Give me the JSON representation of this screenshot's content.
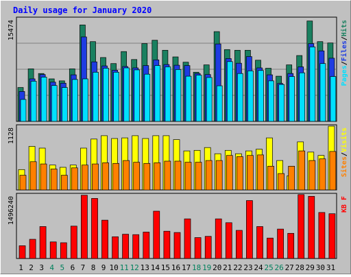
{
  "chart_data": {
    "type": "bar",
    "title": "Daily usage for January 2020",
    "x": [
      "1",
      "2",
      "3",
      "4",
      "5",
      "6",
      "7",
      "8",
      "9",
      "10",
      "11",
      "12",
      "13",
      "14",
      "15",
      "16",
      "17",
      "18",
      "19",
      "20",
      "21",
      "22",
      "23",
      "24",
      "25",
      "26",
      "27",
      "28",
      "29",
      "30",
      "31"
    ],
    "weekend_days": [
      "4",
      "5",
      "11",
      "12",
      "18",
      "19",
      "25",
      "26"
    ],
    "panels": [
      {
        "name": "requests",
        "ymax_label": "15474",
        "ymax": 15474,
        "legend": [
          "Pages",
          "/",
          "Files",
          "/",
          "Hits"
        ],
        "series": [
          {
            "name": "Hits",
            "color": "#1a8060",
            "values": [
              5100,
              7900,
              7200,
              6400,
              6100,
              7900,
              14500,
              12000,
              9600,
              8700,
              10500,
              9300,
              11700,
              12200,
              10700,
              9700,
              8900,
              7400,
              8500,
              13500,
              10800,
              10700,
              10700,
              9200,
              8000,
              6800,
              8500,
              9900,
              15100,
              12000,
              11800
            ]
          },
          {
            "name": "Files",
            "color": "#1e3ce2",
            "values": [
              4500,
              6400,
              7050,
              5900,
              5750,
              7000,
              12700,
              8950,
              8350,
              7700,
              8250,
              8050,
              8400,
              9250,
              8550,
              8450,
              8400,
              7200,
              7050,
              11650,
              9450,
              8750,
              9750,
              8050,
              7000,
              5700,
              7200,
              8200,
              11700,
              10600,
              9500
            ]
          },
          {
            "name": "Pages",
            "color": "#00e0ff",
            "values": [
              3300,
              6050,
              6650,
              5400,
              5100,
              6300,
              6400,
              7400,
              8000,
              7400,
              8050,
              7750,
              7100,
              8400,
              8200,
              7800,
              6800,
              6950,
              6600,
              5350,
              9000,
              7200,
              7600,
              7650,
              6100,
              5550,
              6750,
              7300,
              11200,
              8700,
              6750
            ]
          }
        ]
      },
      {
        "name": "visits",
        "ymax_label": "1128",
        "ymax": 1128,
        "legend": [
          "Sites",
          "/",
          "Visits"
        ],
        "series": [
          {
            "name": "Visits",
            "color": "#ffff00",
            "values": [
              360,
              770,
              740,
              440,
              400,
              440,
              740,
              900,
              960,
              910,
              920,
              960,
              910,
              960,
              960,
              890,
              690,
              700,
              750,
              640,
              700,
              640,
              690,
              720,
              920,
              520,
              250,
              850,
              670,
              610,
              1128
            ]
          },
          {
            "name": "Sites",
            "color": "#ff8000",
            "values": [
              260,
              500,
              460,
              370,
              260,
              390,
              440,
              460,
              480,
              470,
              520,
              490,
              470,
              480,
              510,
              510,
              490,
              490,
              520,
              520,
              610,
              590,
              610,
              620,
              420,
              290,
              420,
              690,
              520,
              550,
              680
            ]
          }
        ]
      },
      {
        "name": "kbytes",
        "ymax_label": "1496240",
        "ymax": 1496240,
        "legend": [
          "KB",
          " ",
          "F"
        ],
        "series": [
          {
            "name": "KB F",
            "color": "#ff0000",
            "values": [
              300000,
              450000,
              750000,
              390000,
              370000,
              760000,
              1485000,
              1410000,
              900000,
              510000,
              570000,
              560000,
              620000,
              1110000,
              640000,
              610000,
              930000,
              490000,
              520000,
              930000,
              840000,
              660000,
              1360000,
              750000,
              480000,
              690000,
              590000,
              1500000,
              1460000,
              1080000,
              1050000
            ]
          }
        ]
      }
    ]
  },
  "colors": {
    "background": "#c0c0c0",
    "plot_background": "#c0c0c0",
    "title": "#0000ff",
    "weekday_label": "#000000",
    "weekend_label": "#00805c",
    "legend_slash": "#000000"
  }
}
